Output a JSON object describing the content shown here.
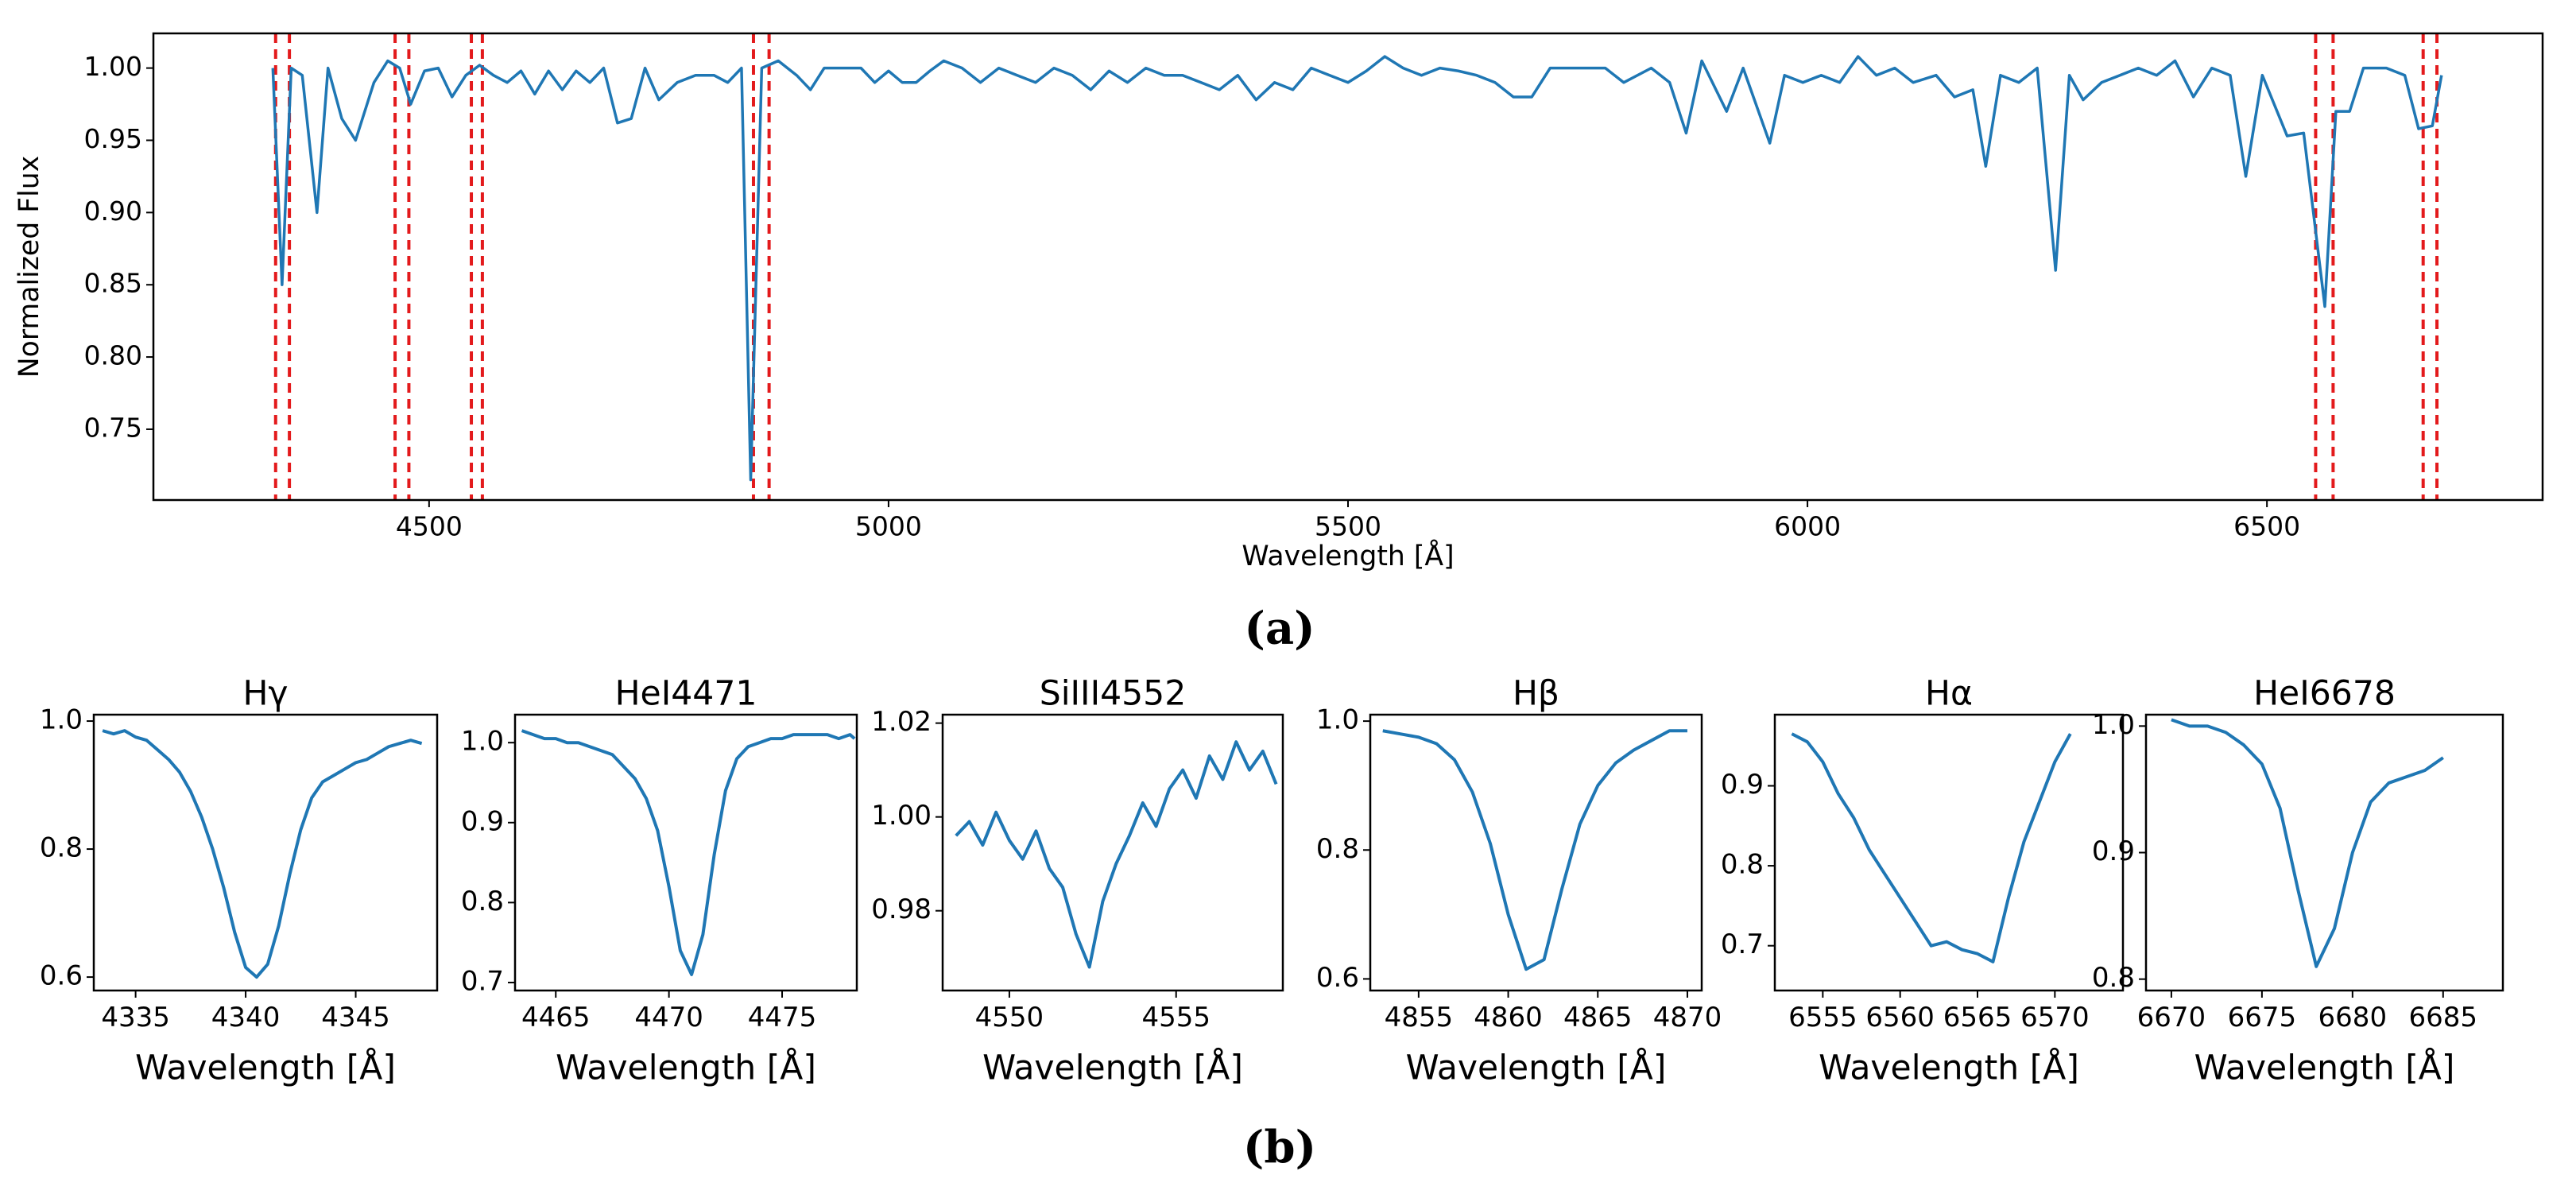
{
  "panel_labels": [
    "(a)",
    "(b)"
  ],
  "chart_data": [
    {
      "type": "line",
      "xlabel": "Wavelength [Å]",
      "ylabel": "Normalized Flux",
      "color": "#1f77b4",
      "xlim": [
        4200,
        6800
      ],
      "ylim": [
        0.701,
        1.024
      ],
      "xticks": [
        4500,
        5000,
        5500,
        6000,
        6500
      ],
      "yticks": [
        0.75,
        {
          "value": 0.8,
          "label": "0.80"
        },
        0.85,
        {
          "value": 0.9,
          "label": "0.90"
        },
        0.95,
        {
          "value": 1,
          "label": "1.00"
        }
      ],
      "vlines": [
        4333,
        4348,
        4463,
        4478,
        4546,
        4558,
        4853,
        4870,
        6553,
        6572,
        6670,
        6685
      ],
      "vline_color": "#e31a1c",
      "x": [
        4330,
        4340,
        4350,
        4362,
        4378,
        4390,
        4405,
        4420,
        4440,
        4455,
        4468,
        4480,
        4495,
        4510,
        4525,
        4540,
        4555,
        4570,
        4585,
        4600,
        4615,
        4630,
        4645,
        4660,
        4675,
        4690,
        4705,
        4720,
        4735,
        4750,
        4770,
        4790,
        4810,
        4825,
        4840,
        4850,
        4862,
        4880,
        4900,
        4915,
        4930,
        4950,
        4970,
        4985,
        5000,
        5015,
        5030,
        5045,
        5060,
        5080,
        5100,
        5120,
        5140,
        5160,
        5180,
        5200,
        5220,
        5240,
        5260,
        5280,
        5300,
        5320,
        5340,
        5360,
        5380,
        5400,
        5420,
        5440,
        5460,
        5480,
        5500,
        5520,
        5540,
        5560,
        5580,
        5600,
        5620,
        5640,
        5660,
        5680,
        5700,
        5720,
        5740,
        5760,
        5780,
        5800,
        5830,
        5850,
        5868,
        5885,
        5912,
        5930,
        5959,
        5975,
        5995,
        6015,
        6035,
        6055,
        6075,
        6095,
        6115,
        6140,
        6160,
        6180,
        6194,
        6210,
        6230,
        6250,
        6270,
        6285,
        6300,
        6320,
        6340,
        6360,
        6380,
        6400,
        6420,
        6440,
        6460,
        6477,
        6495,
        6522,
        6540,
        6563,
        6575,
        6590,
        6605,
        6630,
        6650,
        6665,
        6680,
        6690
      ],
      "values": [
        1.0,
        0.85,
        1.0,
        0.995,
        0.9,
        1.0,
        0.965,
        0.95,
        0.99,
        1.005,
        1.0,
        0.975,
        0.998,
        1.0,
        0.98,
        0.995,
        1.002,
        0.995,
        0.99,
        0.998,
        0.982,
        0.998,
        0.985,
        0.998,
        0.99,
        1.0,
        0.962,
        0.965,
        1.0,
        0.978,
        0.99,
        0.995,
        0.995,
        0.99,
        1.0,
        0.715,
        1.0,
        1.005,
        0.995,
        0.985,
        1.0,
        1.0,
        1.0,
        0.99,
        0.998,
        0.99,
        0.99,
        0.998,
        1.005,
        1.0,
        0.99,
        1.0,
        0.995,
        0.99,
        1.0,
        0.995,
        0.985,
        0.998,
        0.99,
        1.0,
        0.995,
        0.995,
        0.99,
        0.985,
        0.995,
        0.978,
        0.99,
        0.985,
        1.0,
        0.995,
        0.99,
        0.998,
        1.008,
        1.0,
        0.995,
        1.0,
        0.998,
        0.995,
        0.99,
        0.98,
        0.98,
        1.0,
        1.0,
        1.0,
        1.0,
        0.99,
        1.0,
        0.99,
        0.955,
        1.005,
        0.97,
        1.0,
        0.948,
        0.995,
        0.99,
        0.995,
        0.99,
        1.008,
        0.995,
        1.0,
        0.99,
        0.995,
        0.98,
        0.985,
        0.932,
        0.995,
        0.99,
        1.0,
        0.86,
        0.995,
        0.978,
        0.99,
        0.995,
        1.0,
        0.995,
        1.005,
        0.98,
        1.0,
        0.995,
        0.925,
        0.995,
        0.953,
        0.955,
        0.835,
        0.97,
        0.97,
        1.0,
        1.0,
        0.995,
        0.958,
        0.96,
        0.995
      ]
    },
    {
      "type": "line",
      "title": "Hγ",
      "xlabel": "Wavelength [Å]",
      "color": "#1f77b4",
      "xlim": [
        4333.1,
        4348.7
      ],
      "ylim": [
        0.579,
        1.01
      ],
      "xticks": [
        4335,
        4340,
        4345
      ],
      "yticks": [
        0.6,
        0.8,
        {
          "value": 1,
          "label": "1.0"
        }
      ],
      "x": [
        4333.5,
        4334,
        4334.5,
        4335,
        4335.5,
        4336,
        4336.5,
        4337,
        4337.5,
        4338,
        4338.5,
        4339,
        4339.5,
        4340,
        4340.5,
        4341,
        4341.5,
        4342,
        4342.5,
        4343,
        4343.5,
        4344,
        4344.5,
        4345,
        4345.5,
        4346,
        4346.5,
        4347,
        4347.5,
        4348
      ],
      "values": [
        0.985,
        0.98,
        0.985,
        0.975,
        0.97,
        0.955,
        0.94,
        0.92,
        0.89,
        0.85,
        0.8,
        0.74,
        0.67,
        0.615,
        0.6,
        0.62,
        0.68,
        0.76,
        0.83,
        0.88,
        0.905,
        0.915,
        0.925,
        0.935,
        0.94,
        0.95,
        0.96,
        0.965,
        0.97,
        0.965
      ]
    },
    {
      "type": "line",
      "title": "HeI4471",
      "xlabel": "Wavelength [Å]",
      "color": "#1f77b4",
      "xlim": [
        4463.2,
        4478.3
      ],
      "ylim": [
        0.69,
        1.035
      ],
      "xticks": [
        4465,
        4470,
        4475
      ],
      "yticks": [
        0.7,
        0.8,
        0.9,
        {
          "value": 1,
          "label": "1.0"
        }
      ],
      "x": [
        4463.5,
        4464,
        4464.5,
        4465,
        4465.5,
        4466,
        4466.5,
        4467,
        4467.5,
        4468,
        4468.5,
        4469,
        4469.5,
        4470,
        4470.5,
        4471,
        4471.5,
        4472,
        4472.5,
        4473,
        4473.5,
        4474,
        4474.5,
        4475,
        4475.5,
        4476,
        4476.5,
        4477,
        4477.5,
        4478,
        4478.2
      ],
      "values": [
        1.015,
        1.01,
        1.005,
        1.005,
        1.0,
        1.0,
        0.995,
        0.99,
        0.985,
        0.97,
        0.955,
        0.93,
        0.89,
        0.82,
        0.74,
        0.71,
        0.76,
        0.86,
        0.94,
        0.98,
        0.995,
        1.0,
        1.005,
        1.005,
        1.01,
        1.01,
        1.01,
        1.01,
        1.005,
        1.01,
        1.005
      ]
    },
    {
      "type": "line",
      "title": "SiIII4552",
      "xlabel": "Wavelength [Å]",
      "color": "#1f77b4",
      "xlim": [
        4548.0,
        4558.2
      ],
      "ylim": [
        0.963,
        1.0218
      ],
      "xticks": [
        4550,
        4555
      ],
      "yticks": [
        0.98,
        {
          "value": 1,
          "label": "1.00"
        },
        1.02
      ],
      "x": [
        4548.4,
        4548.8,
        4549.2,
        4549.6,
        4550.0,
        4550.4,
        4550.8,
        4551.2,
        4551.6,
        4552.0,
        4552.4,
        4552.8,
        4553.2,
        4553.6,
        4554.0,
        4554.4,
        4554.8,
        4555.2,
        4555.6,
        4556.0,
        4556.4,
        4556.8,
        4557.2,
        4557.6,
        4558.0
      ],
      "values": [
        0.996,
        0.999,
        0.994,
        1.001,
        0.995,
        0.991,
        0.997,
        0.989,
        0.985,
        0.975,
        0.968,
        0.982,
        0.99,
        0.996,
        1.003,
        0.998,
        1.006,
        1.01,
        1.004,
        1.013,
        1.008,
        1.016,
        1.01,
        1.014,
        1.007
      ]
    },
    {
      "type": "line",
      "title": "Hβ",
      "xlabel": "Wavelength [Å]",
      "color": "#1f77b4",
      "xlim": [
        4852.3,
        4870.8
      ],
      "ylim": [
        0.582,
        1.01
      ],
      "xticks": [
        4855,
        4860,
        4865,
        4870
      ],
      "yticks": [
        0.6,
        0.8,
        {
          "value": 1,
          "label": "1.0"
        }
      ],
      "x": [
        4853,
        4854,
        4855,
        4856,
        4857,
        4858,
        4859,
        4860,
        4861,
        4862,
        4863,
        4864,
        4865,
        4866,
        4867,
        4868,
        4869,
        4870
      ],
      "values": [
        0.985,
        0.98,
        0.975,
        0.965,
        0.94,
        0.89,
        0.81,
        0.7,
        0.615,
        0.63,
        0.74,
        0.84,
        0.9,
        0.935,
        0.955,
        0.97,
        0.985,
        0.985
      ]
    },
    {
      "type": "line",
      "title": "Hα",
      "xlabel": "Wavelength [Å]",
      "color": "#1f77b4",
      "xlim": [
        6551.9,
        6574.4
      ],
      "ylim": [
        0.644,
        0.989
      ],
      "xticks": [
        6555,
        6560,
        6565,
        6570
      ],
      "yticks": [
        0.7,
        0.8,
        0.9
      ],
      "x": [
        6553,
        6554,
        6555,
        6556,
        6557,
        6558,
        6559,
        6560,
        6561,
        6562,
        6563,
        6564,
        6565,
        6566,
        6567,
        6568,
        6569,
        6570,
        6571
      ],
      "values": [
        0.965,
        0.955,
        0.93,
        0.89,
        0.86,
        0.82,
        0.79,
        0.76,
        0.73,
        0.7,
        0.705,
        0.695,
        0.69,
        0.68,
        0.76,
        0.83,
        0.88,
        0.93,
        0.965
      ]
    },
    {
      "type": "line",
      "title": "HeI6678",
      "xlabel": "Wavelength [Å]",
      "color": "#1f77b4",
      "xlim": [
        6668.6,
        6688.3
      ],
      "ylim": [
        0.791,
        1.009
      ],
      "xticks": [
        6670,
        6675,
        6680,
        6685
      ],
      "yticks": [
        0.8,
        0.9,
        {
          "value": 1,
          "label": "1.0"
        }
      ],
      "x": [
        6670,
        6671,
        6672,
        6673,
        6674,
        6675,
        6676,
        6677,
        6678,
        6679,
        6680,
        6681,
        6682,
        6683,
        6684,
        6685
      ],
      "values": [
        1.005,
        1.0,
        1.0,
        0.995,
        0.985,
        0.97,
        0.935,
        0.87,
        0.81,
        0.84,
        0.9,
        0.94,
        0.955,
        0.96,
        0.965,
        0.975
      ]
    }
  ]
}
